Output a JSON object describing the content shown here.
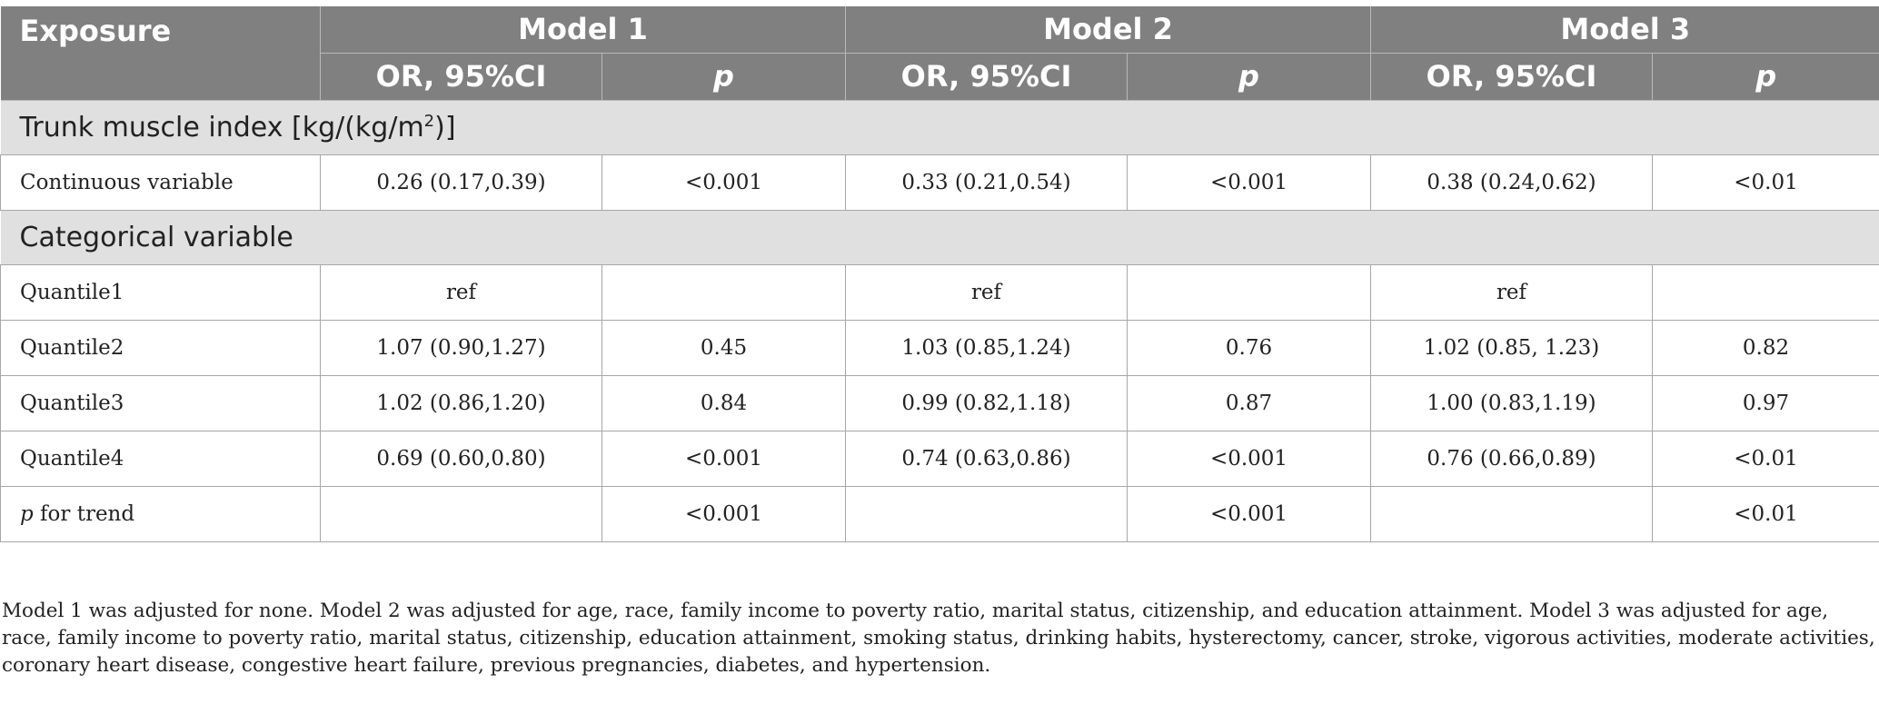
{
  "table": {
    "header": {
      "exposure": "Exposure",
      "models": [
        "Model 1",
        "Model 2",
        "Model 3"
      ],
      "sub_or": "OR, 95%CI",
      "sub_p": "p"
    },
    "sections": [
      {
        "title_prefix": "Trunk muscle index [kg/(kg/m",
        "title_sup": "2",
        "title_suffix": ")]",
        "rows": [
          {
            "label": "Continuous variable",
            "cells": [
              "0.26 (0.17,0.39)",
              "<0.001",
              "0.33 (0.21,0.54)",
              "<0.001",
              "0.38 (0.24,0.62)",
              "<0.01"
            ]
          }
        ]
      },
      {
        "title": "Categorical variable",
        "rows": [
          {
            "label": "Quantile1",
            "cells": [
              "ref",
              "",
              "ref",
              "",
              "ref",
              ""
            ]
          },
          {
            "label": "Quantile2",
            "cells": [
              "1.07 (0.90,1.27)",
              "0.45",
              "1.03 (0.85,1.24)",
              "0.76",
              "1.02 (0.85, 1.23)",
              "0.82"
            ]
          },
          {
            "label": "Quantile3",
            "cells": [
              "1.02 (0.86,1.20)",
              "0.84",
              "0.99 (0.82,1.18)",
              "0.87",
              "1.00 (0.83,1.19)",
              "0.97"
            ]
          },
          {
            "label": "Quantile4",
            "cells": [
              "0.69 (0.60,0.80)",
              "<0.001",
              "0.74 (0.63,0.86)",
              "<0.001",
              "0.76 (0.66,0.89)",
              "<0.01"
            ]
          },
          {
            "label_italic": "p",
            "label_rest": " for trend",
            "cells": [
              "",
              "<0.001",
              "",
              "<0.001",
              "",
              "<0.01"
            ]
          }
        ]
      }
    ],
    "footnote": "Model 1 was adjusted for none. Model 2 was adjusted for age, race, family income to poverty ratio, marital status, citizenship, and education attainment. Model 3 was adjusted for age, race, family income to poverty ratio, marital status, citizenship, education attainment, smoking status, drinking habits, hysterectomy, cancer, stroke, vigorous activities, moderate activities, coronary heart disease, congestive heart failure, previous pregnancies, diabetes, and hypertension."
  }
}
